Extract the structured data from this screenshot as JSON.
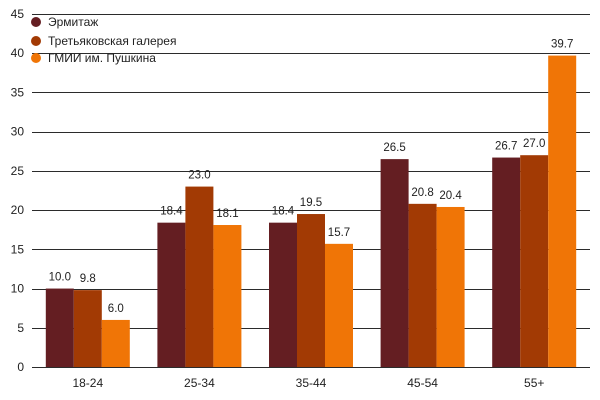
{
  "chart_data": {
    "type": "bar",
    "categories": [
      "18-24",
      "25-34",
      "35-44",
      "45-54",
      "55+"
    ],
    "series": [
      {
        "name": "Эрмитаж",
        "values": [
          10.0,
          18.4,
          18.4,
          26.5,
          26.7
        ],
        "color": "#641e22"
      },
      {
        "name": "Третьяковская галерея",
        "values": [
          9.8,
          23.0,
          19.5,
          20.8,
          27.0
        ],
        "color": "#a23a04"
      },
      {
        "name": "ГМИИ им. Пушкина",
        "values": [
          6.0,
          18.1,
          15.7,
          20.4,
          39.7
        ],
        "color": "#f07506"
      }
    ],
    "ylim": [
      0,
      45
    ],
    "yticks": [
      0,
      5,
      10,
      15,
      20,
      25,
      30,
      35,
      40,
      45
    ],
    "grid": true,
    "legend_position": "top-left",
    "value_decimals": 1
  }
}
